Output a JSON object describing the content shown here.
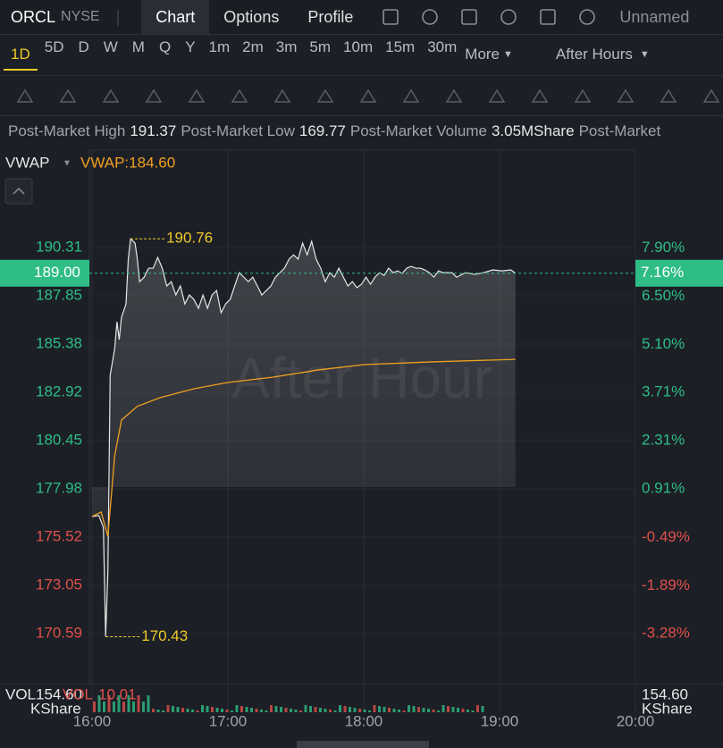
{
  "header": {
    "symbol": "ORCL",
    "exchange": "NYSE",
    "tabs": [
      "Chart",
      "Options",
      "Profile"
    ],
    "layout": "Unnamed"
  },
  "timeframes": [
    "1D",
    "5D",
    "D",
    "W",
    "M",
    "Q",
    "Y",
    "1m",
    "2m",
    "3m",
    "5m",
    "10m",
    "15m",
    "30m"
  ],
  "more": "More",
  "session": "After Hours",
  "stats": [
    {
      "label": "Post-Market High",
      "value": "191.37"
    },
    {
      "label": "Post-Market Low",
      "value": "169.77"
    },
    {
      "label": "Post-Market Volume",
      "value": "3.05MShare"
    },
    {
      "label": "Post-Market",
      "value": ""
    }
  ],
  "indicator": {
    "name": "VWAP",
    "value": "VWAP:184.60"
  },
  "watermark": "After Hour",
  "volume": {
    "left_name": "VOL",
    "left_value": "154.60",
    "name2": "VOL",
    "value2": "10.01",
    "unit": "KShare",
    "right_value": "154.60",
    "right_unit": "KShare"
  },
  "chart": {
    "type": "line",
    "xlim": [
      "16:00",
      "20:00"
    ],
    "xticks": [
      "16:00",
      "17:00",
      "18:00",
      "19:00",
      "20:00"
    ],
    "ylim": [
      168.03,
      195.29
    ],
    "yticks": [
      190.31,
      187.85,
      185.38,
      182.92,
      180.45,
      177.98,
      175.52,
      173.05,
      170.59
    ],
    "y2lim": [
      -4.73,
      10.73
    ],
    "y2ticks": [
      {
        "value": 7.9,
        "label": "7.90%"
      },
      {
        "value": 6.5,
        "label": "6.50%"
      },
      {
        "value": 5.1,
        "label": "5.10%"
      },
      {
        "value": 3.71,
        "label": "3.71%"
      },
      {
        "value": 2.31,
        "label": "2.31%"
      },
      {
        "value": 0.91,
        "label": "0.91%"
      },
      {
        "value": -0.49,
        "label": "-0.49%"
      },
      {
        "value": -1.89,
        "label": "-1.89%"
      },
      {
        "value": -3.28,
        "label": "-3.28%"
      }
    ],
    "last": {
      "value": 189.0,
      "label": "189.00",
      "change": {
        "value": 7.16,
        "label": "7.16%"
      }
    },
    "annotations": [
      {
        "x": "16:17",
        "value": 190.76
      },
      {
        "x": "16:06",
        "value": 170.43
      }
    ],
    "price": {
      "color": "#e6e6e6",
      "x": [
        "16:00",
        "16:03",
        "16:05",
        "16:06",
        "16:07",
        "16:08",
        "16:10",
        "16:11",
        "16:12",
        "16:13",
        "16:15",
        "16:16",
        "16:17",
        "16:19",
        "16:20",
        "16:21",
        "16:23",
        "16:25",
        "16:27",
        "16:29",
        "16:31",
        "16:33",
        "16:35",
        "16:37",
        "16:39",
        "16:41",
        "16:43",
        "16:45",
        "16:47",
        "16:49",
        "16:51",
        "16:53",
        "16:55",
        "16:57",
        "16:59",
        "17:01",
        "17:03",
        "17:05",
        "17:07",
        "17:09",
        "17:11",
        "17:13",
        "17:15",
        "17:17",
        "17:19",
        "17:21",
        "17:23",
        "17:25",
        "17:27",
        "17:29",
        "17:31",
        "17:33",
        "17:35",
        "17:37",
        "17:39",
        "17:41",
        "17:43",
        "17:45",
        "17:47",
        "17:49",
        "17:51",
        "17:53",
        "17:55",
        "17:57",
        "17:59",
        "18:01",
        "18:03",
        "18:05",
        "18:07",
        "18:09",
        "18:11",
        "18:13",
        "18:15",
        "18:17",
        "18:19",
        "18:21",
        "18:23",
        "18:25",
        "18:27",
        "18:29",
        "18:31",
        "18:33",
        "18:35",
        "18:39",
        "18:41",
        "18:45",
        "18:49",
        "18:53",
        "18:57",
        "19:01",
        "19:05",
        "19:07"
      ],
      "values": [
        176.57,
        176.62,
        176.02,
        170.43,
        173.74,
        183.78,
        185.15,
        186.52,
        185.61,
        186.75,
        187.43,
        189.72,
        190.76,
        190.54,
        189.72,
        188.57,
        188.8,
        189.26,
        189.26,
        189.81,
        189.26,
        188.35,
        188.57,
        187.89,
        188.35,
        187.43,
        187.89,
        187.66,
        187.21,
        187.89,
        187.21,
        187.89,
        188.12,
        186.98,
        187.43,
        187.66,
        188.35,
        189.03,
        188.8,
        188.57,
        188.8,
        188.35,
        187.89,
        188.12,
        188.35,
        188.8,
        189.03,
        189.26,
        189.72,
        189.94,
        189.72,
        190.54,
        189.94,
        190.63,
        189.72,
        189.26,
        188.57,
        189.03,
        188.8,
        189.26,
        188.8,
        188.35,
        188.57,
        188.26,
        188.44,
        188.8,
        188.44,
        188.8,
        189.03,
        188.89,
        189.26,
        189.03,
        189.12,
        188.99,
        189.26,
        189.35,
        189.26,
        189.26,
        189.17,
        189.03,
        188.8,
        189.12,
        189.03,
        189.03,
        188.8,
        189.03,
        188.94,
        189.03,
        189.17,
        189.12,
        189.17,
        189.0
      ]
    },
    "vwap": {
      "name": "VWAP",
      "color": "#f0a020",
      "x": [
        "16:00",
        "16:04",
        "16:07",
        "16:10",
        "16:13",
        "16:20",
        "16:30",
        "16:45",
        "17:00",
        "17:20",
        "17:40",
        "18:00",
        "18:30",
        "19:07"
      ],
      "values": [
        176.57,
        176.8,
        175.56,
        179.67,
        181.5,
        182.2,
        182.64,
        183.1,
        183.42,
        183.69,
        184.06,
        184.33,
        184.47,
        184.6
      ]
    }
  }
}
